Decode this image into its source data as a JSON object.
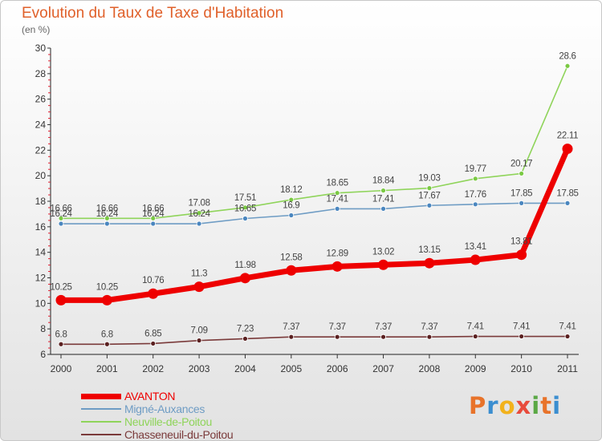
{
  "title": "Evolution du Taux de Taxe d'Habitation",
  "subtitle": "(en %)",
  "logo": {
    "text": "Proxiti",
    "colors": [
      "#e8732a",
      "#3b8ed0",
      "#f2b21c",
      "#e84b3c",
      "#5aa845",
      "#e8732a",
      "#3b8ed0"
    ]
  },
  "chart_data": {
    "type": "line",
    "title": "Evolution du Taux de Taxe d'Habitation",
    "ylabel": "(en %)",
    "xlabel": "",
    "ylim": [
      6,
      30
    ],
    "yticks": [
      "6",
      "8",
      "10",
      "12",
      "14",
      "16",
      "18",
      "20",
      "22",
      "24",
      "26",
      "28",
      "30"
    ],
    "categories": [
      "2000",
      "2001",
      "2002",
      "2003",
      "2004",
      "2005",
      "2006",
      "2007",
      "2008",
      "2009",
      "2010",
      "2011"
    ],
    "series": [
      {
        "name": "Neuville-de-Poitou",
        "color": "#8fd45a",
        "dot": "#7ac943",
        "values": [
          16.66,
          16.66,
          16.66,
          17.08,
          17.51,
          18.12,
          18.65,
          18.84,
          19.03,
          19.77,
          20.17,
          28.6
        ],
        "labels": [
          "16.66",
          "16.66",
          "16.66",
          "17.08",
          "17.51",
          "18.12",
          "18.65",
          "18.84",
          "19.03",
          "19.77",
          "20.17",
          "28.6"
        ]
      },
      {
        "name": "Migné-Auxances",
        "color": "#6e9cc4",
        "dot": "#4a86bf",
        "values": [
          16.24,
          16.24,
          16.24,
          16.24,
          16.65,
          16.9,
          17.41,
          17.41,
          17.67,
          17.76,
          17.85,
          17.85
        ],
        "labels": [
          "16.24",
          "16.24",
          "16.24",
          "16.24",
          "16.65",
          "16.9",
          "17.41",
          "17.41",
          "17.67",
          "17.76",
          "17.85",
          "17.85"
        ]
      },
      {
        "name": "Chasseneuil-du-Poitou",
        "color": "#7a3a3a",
        "dot": "#5a2020",
        "values": [
          6.8,
          6.8,
          6.85,
          7.09,
          7.23,
          7.37,
          7.37,
          7.37,
          7.37,
          7.41,
          7.41,
          7.41
        ],
        "labels": [
          "6.8",
          "6.8",
          "6.85",
          "7.09",
          "7.23",
          "7.37",
          "7.37",
          "7.37",
          "7.37",
          "7.41",
          "7.41",
          "7.41"
        ]
      },
      {
        "name": "AVANTON",
        "color": "#ee0000",
        "dot": "#ee0000",
        "values": [
          10.25,
          10.25,
          10.76,
          11.3,
          11.98,
          12.58,
          12.89,
          13.02,
          13.15,
          13.41,
          13.81,
          22.11
        ],
        "labels": [
          "10.25",
          "10.25",
          "10.76",
          "11.3",
          "11.98",
          "12.58",
          "12.89",
          "13.02",
          "13.15",
          "13.41",
          "13.81",
          "22.11"
        ]
      }
    ],
    "legend": [
      {
        "name": "AVANTON",
        "color": "#ee0000",
        "thick": true
      },
      {
        "name": "Migné-Auxances",
        "color": "#6e9cc4",
        "thick": false
      },
      {
        "name": "Neuville-de-Poitou",
        "color": "#8fd45a",
        "thick": false
      },
      {
        "name": "Chasseneuil-du-Poitou",
        "color": "#7a3a3a",
        "thick": false
      }
    ]
  }
}
